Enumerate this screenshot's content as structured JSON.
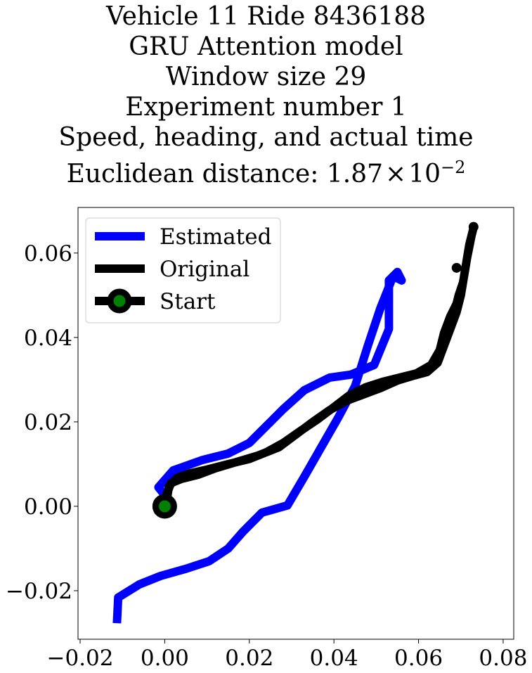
{
  "title_lines": [
    "Vehicle 11 Ride 8436188",
    "GRU Attention model",
    "Window size 29",
    "Experiment number 1",
    "Speed, heading, and actual time"
  ],
  "title_last": {
    "prefix": "Euclidean distance: ",
    "mantissa": "1.87",
    "times": "×",
    "base": "10",
    "exponent": "−2"
  },
  "chart_data": {
    "type": "line",
    "title": "Vehicle 11 Ride 8436188 GRU Attention model Window size 29 Experiment number 1 Speed, heading, and actual time Euclidean distance: 1.87×10^-2",
    "xlabel": "",
    "ylabel": "",
    "xlim": [
      -0.0205,
      0.0825
    ],
    "ylim": [
      -0.0315,
      0.0708
    ],
    "x_ticks": [
      -0.02,
      0.0,
      0.02,
      0.04,
      0.06,
      0.08
    ],
    "x_tick_labels": [
      "−0.02",
      "0.00",
      "0.02",
      "0.04",
      "0.06",
      "0.08"
    ],
    "y_ticks": [
      -0.02,
      0.0,
      0.02,
      0.04,
      0.06
    ],
    "y_tick_labels": [
      "−0.02",
      "0.00",
      "0.02",
      "0.04",
      "0.06"
    ],
    "grid": false,
    "legend_position": "top-left",
    "series": [
      {
        "name": "Estimated",
        "color": "#0000ff",
        "points": [
          [
            -0.0113,
            -0.0277
          ],
          [
            -0.011,
            -0.0216
          ],
          [
            -0.006,
            -0.0185
          ],
          [
            -0.001,
            -0.0165
          ],
          [
            0.005,
            -0.0148
          ],
          [
            0.0105,
            -0.013
          ],
          [
            0.015,
            -0.01
          ],
          [
            0.0185,
            -0.006
          ],
          [
            0.023,
            -0.0015
          ],
          [
            0.029,
            0.0002
          ],
          [
            0.033,
            0.007
          ],
          [
            0.037,
            0.014
          ],
          [
            0.041,
            0.021
          ],
          [
            0.045,
            0.0285
          ],
          [
            0.048,
            0.038
          ],
          [
            0.051,
            0.047
          ],
          [
            0.054,
            0.0545
          ],
          [
            0.056,
            0.0535
          ],
          [
            0.055,
            0.0555
          ],
          [
            0.053,
            0.0535
          ],
          [
            0.053,
            0.042
          ],
          [
            0.0495,
            0.0335
          ],
          [
            0.044,
            0.0312
          ],
          [
            0.039,
            0.0305
          ],
          [
            0.033,
            0.0275
          ],
          [
            0.028,
            0.023
          ],
          [
            0.024,
            0.019
          ],
          [
            0.02,
            0.015
          ],
          [
            0.015,
            0.0125
          ],
          [
            0.009,
            0.011
          ],
          [
            0.002,
            0.0085
          ],
          [
            -0.0015,
            0.0045
          ],
          [
            0.0005,
            0.002
          ]
        ]
      },
      {
        "name": "Original",
        "color": "#000000",
        "points": [
          [
            -0.0025,
            -0.0008
          ],
          [
            0.0,
            -0.0005
          ],
          [
            0.0005,
            0.003
          ],
          [
            0.0015,
            0.0055
          ],
          [
            0.004,
            0.0065
          ],
          [
            0.008,
            0.0075
          ],
          [
            0.012,
            0.009
          ],
          [
            0.017,
            0.0105
          ],
          [
            0.022,
            0.012
          ],
          [
            0.027,
            0.014
          ],
          [
            0.031,
            0.017
          ],
          [
            0.035,
            0.02
          ],
          [
            0.039,
            0.0228
          ],
          [
            0.043,
            0.025
          ],
          [
            0.047,
            0.0265
          ],
          [
            0.051,
            0.028
          ],
          [
            0.055,
            0.0298
          ],
          [
            0.059,
            0.031
          ],
          [
            0.062,
            0.0318
          ],
          [
            0.0645,
            0.034
          ],
          [
            0.066,
            0.038
          ],
          [
            0.0675,
            0.042
          ],
          [
            0.069,
            0.046
          ],
          [
            0.07,
            0.05
          ],
          [
            0.071,
            0.056
          ],
          [
            0.072,
            0.062
          ],
          [
            0.073,
            0.066
          ],
          [
            0.0725,
            0.064
          ],
          [
            0.0715,
            0.059
          ],
          [
            0.0705,
            0.053
          ],
          [
            0.0695,
            0.05
          ],
          [
            0.069,
            0.048
          ],
          [
            0.0675,
            0.045
          ],
          [
            0.066,
            0.041
          ],
          [
            0.065,
            0.037
          ],
          [
            0.063,
            0.0335
          ],
          [
            0.0595,
            0.0315
          ],
          [
            0.0555,
            0.0305
          ],
          [
            0.0515,
            0.0295
          ],
          [
            0.0475,
            0.0282
          ],
          [
            0.0435,
            0.0262
          ],
          [
            0.04,
            0.0235
          ],
          [
            0.036,
            0.0205
          ],
          [
            0.032,
            0.0178
          ],
          [
            0.028,
            0.015
          ],
          [
            0.024,
            0.0128
          ],
          [
            0.02,
            0.0112
          ],
          [
            0.015,
            0.01
          ],
          [
            0.01,
            0.0087
          ],
          [
            0.006,
            0.0078
          ],
          [
            0.003,
            0.0068
          ],
          [
            0.001,
            0.0048
          ],
          [
            0.0005,
            0.0015
          ]
        ]
      }
    ],
    "start_marker": {
      "name": "Start",
      "x": 0.0,
      "y": 0.0,
      "edge_color": "#000000",
      "face_color": "#008000"
    },
    "extra_markers": [
      {
        "x": 0.069,
        "y": 0.0565,
        "color": "#000000"
      },
      {
        "x": 0.073,
        "y": 0.0662,
        "color": "#000000"
      }
    ]
  },
  "legend": {
    "items": [
      "Estimated",
      "Original",
      "Start"
    ]
  }
}
